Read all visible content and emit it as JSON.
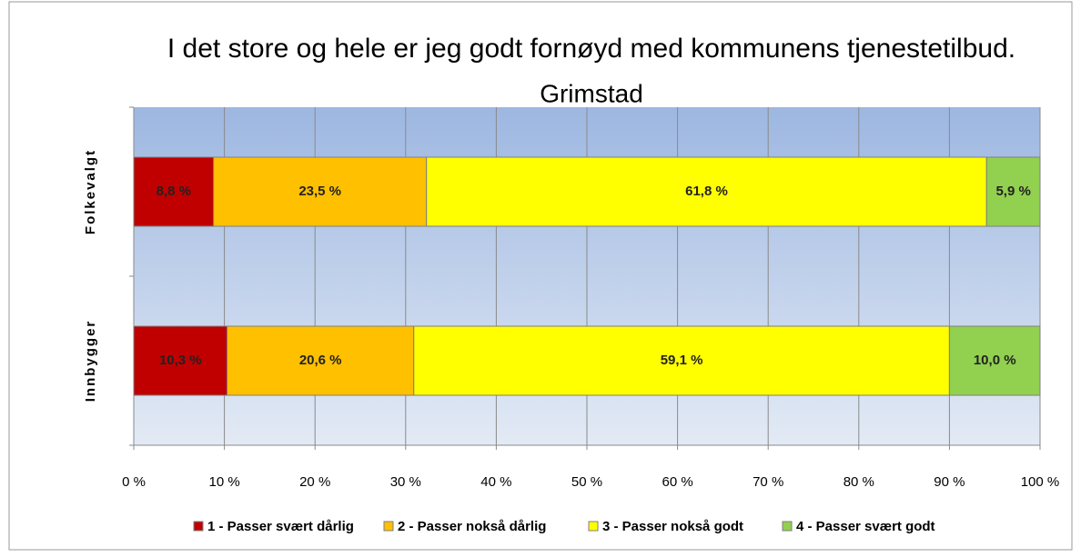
{
  "chart_data": {
    "type": "stacked_barh",
    "title": "I det store og hele er jeg godt fornøyd med kommunens tjenestetilbud.",
    "subtitle": "Grimstad",
    "categories": [
      "Folkevalgt",
      "Innbygger"
    ],
    "series": [
      {
        "name": "1 - Passer svært dårlig",
        "color": "#c00000",
        "values": [
          8.8,
          10.3
        ],
        "value_labels": [
          "8,8 %",
          "10,3 %"
        ]
      },
      {
        "name": "2 - Passer nokså dårlig",
        "color": "#ffc000",
        "values": [
          23.5,
          20.6
        ],
        "value_labels": [
          "23,5 %",
          "20,6 %"
        ]
      },
      {
        "name": "3 - Passer nokså godt",
        "color": "#ffff00",
        "values": [
          61.8,
          59.1
        ],
        "value_labels": [
          "61,8 %",
          "59,1 %"
        ]
      },
      {
        "name": "4 - Passer svært godt",
        "color": "#92d050",
        "values": [
          5.9,
          10.0
        ],
        "value_labels": [
          "5,9 %",
          "10,0 %"
        ]
      }
    ],
    "xlim": [
      0,
      100
    ],
    "xticks": [
      {
        "value": 0,
        "label": "0 %"
      },
      {
        "value": 10,
        "label": "10 %"
      },
      {
        "value": 20,
        "label": "20 %"
      },
      {
        "value": 30,
        "label": "30 %"
      },
      {
        "value": 40,
        "label": "40 %"
      },
      {
        "value": 50,
        "label": "50 %"
      },
      {
        "value": 60,
        "label": "60 %"
      },
      {
        "value": 70,
        "label": "70 %"
      },
      {
        "value": 80,
        "label": "80 %"
      },
      {
        "value": 90,
        "label": "90 %"
      },
      {
        "value": 100,
        "label": "100 %"
      }
    ],
    "grid": true,
    "legend": "bottom"
  }
}
